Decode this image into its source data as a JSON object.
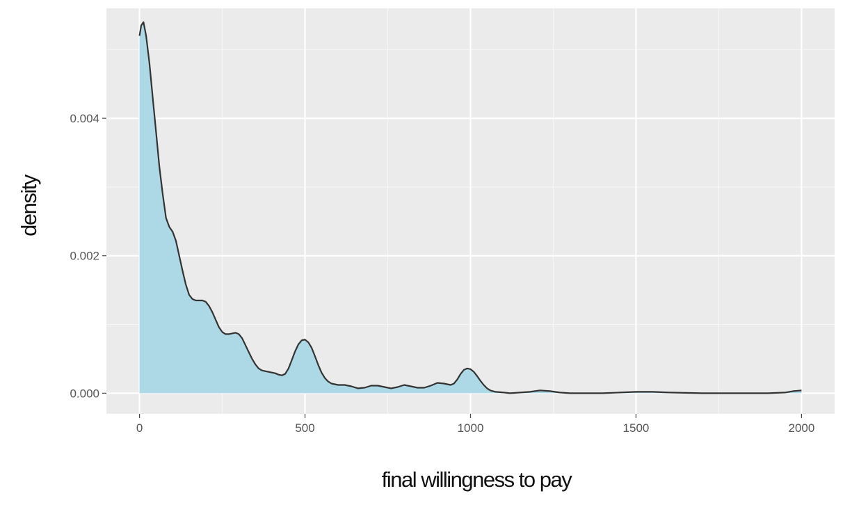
{
  "chart_data": {
    "type": "area",
    "title": "",
    "xlabel": "final willingness to pay",
    "ylabel": "density",
    "xlim": [
      -100,
      2100
    ],
    "ylim": [
      -0.0003,
      0.0056
    ],
    "x_ticks": [
      0,
      500,
      1000,
      1500,
      2000
    ],
    "x_tick_labels": [
      "0",
      "500",
      "1000",
      "1500",
      "2000"
    ],
    "y_ticks": [
      0.0,
      0.002,
      0.004
    ],
    "y_tick_labels": [
      "0.000",
      "0.002",
      "0.004"
    ],
    "grid": true,
    "legend": "none",
    "fill_color": "#add8e6",
    "line_color": "#333333",
    "panel_color": "#ebebeb",
    "points": [
      [
        0,
        0.0052
      ],
      [
        5,
        0.00535
      ],
      [
        12,
        0.0054
      ],
      [
        20,
        0.0052
      ],
      [
        30,
        0.0048
      ],
      [
        40,
        0.0043
      ],
      [
        50,
        0.0038
      ],
      [
        60,
        0.0033
      ],
      [
        70,
        0.0029
      ],
      [
        80,
        0.00255
      ],
      [
        90,
        0.00242
      ],
      [
        100,
        0.00235
      ],
      [
        110,
        0.00222
      ],
      [
        120,
        0.002
      ],
      [
        130,
        0.00178
      ],
      [
        140,
        0.00158
      ],
      [
        150,
        0.00143
      ],
      [
        160,
        0.00137
      ],
      [
        170,
        0.00135
      ],
      [
        180,
        0.00135
      ],
      [
        190,
        0.00135
      ],
      [
        200,
        0.00133
      ],
      [
        210,
        0.00127
      ],
      [
        220,
        0.00118
      ],
      [
        230,
        0.00107
      ],
      [
        240,
        0.00096
      ],
      [
        250,
        0.00089
      ],
      [
        260,
        0.00086
      ],
      [
        270,
        0.00086
      ],
      [
        280,
        0.00087
      ],
      [
        290,
        0.00088
      ],
      [
        300,
        0.00086
      ],
      [
        310,
        0.0008
      ],
      [
        320,
        0.0007
      ],
      [
        330,
        0.0006
      ],
      [
        340,
        0.0005
      ],
      [
        350,
        0.00042
      ],
      [
        360,
        0.00036
      ],
      [
        370,
        0.00033
      ],
      [
        380,
        0.00032
      ],
      [
        390,
        0.00031
      ],
      [
        400,
        0.0003
      ],
      [
        410,
        0.00029
      ],
      [
        420,
        0.00027
      ],
      [
        430,
        0.00026
      ],
      [
        440,
        0.00028
      ],
      [
        450,
        0.00036
      ],
      [
        460,
        0.00048
      ],
      [
        470,
        0.00061
      ],
      [
        480,
        0.00071
      ],
      [
        490,
        0.00077
      ],
      [
        500,
        0.00078
      ],
      [
        510,
        0.00074
      ],
      [
        520,
        0.00066
      ],
      [
        530,
        0.00054
      ],
      [
        540,
        0.00041
      ],
      [
        550,
        0.0003
      ],
      [
        560,
        0.00022
      ],
      [
        570,
        0.00017
      ],
      [
        580,
        0.00014
      ],
      [
        590,
        0.00013
      ],
      [
        600,
        0.00012
      ],
      [
        620,
        0.00012
      ],
      [
        640,
        0.0001
      ],
      [
        660,
        7e-05
      ],
      [
        680,
        8e-05
      ],
      [
        700,
        0.00011
      ],
      [
        720,
        0.00011
      ],
      [
        740,
        9e-05
      ],
      [
        760,
        7e-05
      ],
      [
        780,
        9e-05
      ],
      [
        800,
        0.00012
      ],
      [
        820,
        0.0001
      ],
      [
        840,
        8e-05
      ],
      [
        860,
        8e-05
      ],
      [
        880,
        0.00011
      ],
      [
        900,
        0.00015
      ],
      [
        920,
        0.00014
      ],
      [
        940,
        0.00012
      ],
      [
        950,
        0.00014
      ],
      [
        960,
        0.0002
      ],
      [
        970,
        0.00028
      ],
      [
        980,
        0.00034
      ],
      [
        990,
        0.00036
      ],
      [
        1000,
        0.00035
      ],
      [
        1010,
        0.00031
      ],
      [
        1020,
        0.00025
      ],
      [
        1030,
        0.00018
      ],
      [
        1040,
        0.00012
      ],
      [
        1050,
        7e-05
      ],
      [
        1060,
        4e-05
      ],
      [
        1075,
        2e-05
      ],
      [
        1100,
        1e-05
      ],
      [
        1120,
        0.0
      ],
      [
        1150,
        1e-05
      ],
      [
        1180,
        2e-05
      ],
      [
        1210,
        4e-05
      ],
      [
        1240,
        3e-05
      ],
      [
        1270,
        1e-05
      ],
      [
        1300,
        0.0
      ],
      [
        1400,
        0.0
      ],
      [
        1450,
        1e-05
      ],
      [
        1500,
        2e-05
      ],
      [
        1550,
        2e-05
      ],
      [
        1600,
        1e-05
      ],
      [
        1700,
        0.0
      ],
      [
        1800,
        0.0
      ],
      [
        1900,
        0.0
      ],
      [
        1950,
        1e-05
      ],
      [
        1975,
        3e-05
      ],
      [
        2000,
        4e-05
      ]
    ]
  }
}
